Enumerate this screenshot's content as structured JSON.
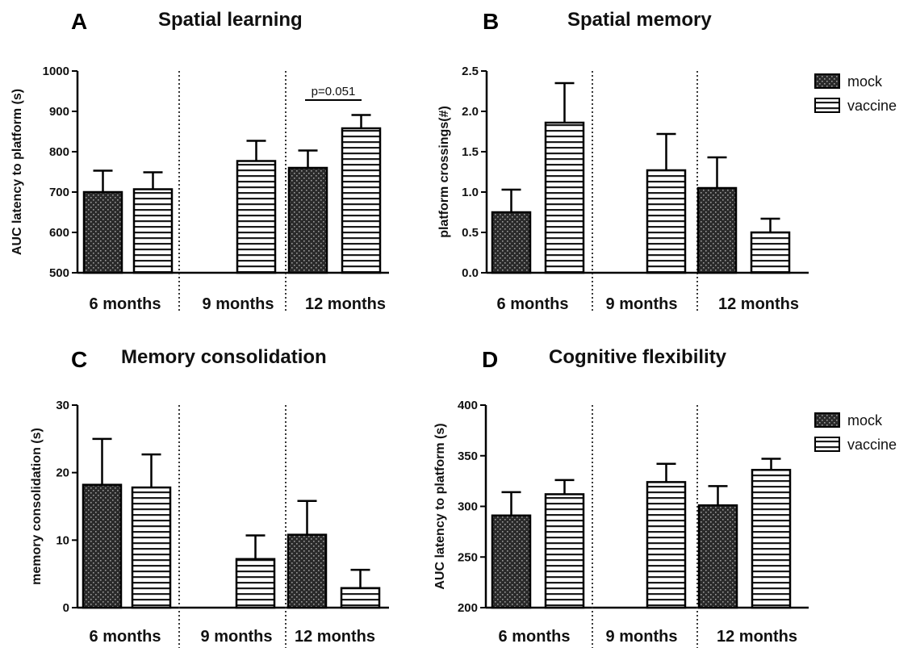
{
  "legend": [
    "mock",
    "vaccine"
  ],
  "chart_data": [
    {
      "letter": "A",
      "title": "Spatial learning",
      "type": "bar",
      "ylabel": "AUC latency to platform (s)",
      "ylim": [
        500,
        1000
      ],
      "yticks": [
        500,
        600,
        700,
        800,
        900,
        1000
      ],
      "groups": [
        "6 months",
        "9 months",
        "12 months"
      ],
      "series": [
        {
          "name": "mock",
          "values": [
            700,
            null,
            760
          ],
          "errors": [
            53,
            null,
            43
          ]
        },
        {
          "name": "vaccine",
          "values": [
            707,
            777,
            858
          ],
          "errors": [
            42,
            50,
            33
          ]
        }
      ],
      "annotations": [
        "p=0.051"
      ]
    },
    {
      "letter": "B",
      "title": "Spatial memory",
      "type": "bar",
      "ylabel": "platform crossings(#)",
      "ylim": [
        0,
        2.5
      ],
      "yticks": [
        "0.0",
        "0.5",
        "1.0",
        "1.5",
        "2.0",
        "2.5"
      ],
      "groups": [
        "6 months",
        "9 months",
        "12 months"
      ],
      "series": [
        {
          "name": "mock",
          "values": [
            0.75,
            null,
            1.05
          ],
          "errors": [
            0.28,
            null,
            0.38
          ]
        },
        {
          "name": "vaccine",
          "values": [
            1.86,
            1.27,
            0.5
          ],
          "errors": [
            0.49,
            0.45,
            0.17
          ]
        }
      ]
    },
    {
      "letter": "C",
      "title": "Memory consolidation",
      "type": "bar",
      "ylabel": "memory consolidation (s)",
      "ylim": [
        0,
        30
      ],
      "yticks": [
        0,
        10,
        20,
        30
      ],
      "groups": [
        "6 months",
        "9 months",
        "12 months"
      ],
      "series": [
        {
          "name": "mock",
          "values": [
            18.2,
            null,
            10.8
          ],
          "errors": [
            6.8,
            null,
            5.0
          ]
        },
        {
          "name": "vaccine",
          "values": [
            17.8,
            7.2,
            2.9
          ],
          "errors": [
            4.9,
            3.5,
            2.7
          ]
        }
      ]
    },
    {
      "letter": "D",
      "title": "Cognitive flexibility",
      "type": "bar",
      "ylabel": "AUC latency to platform (s)",
      "ylim": [
        200,
        400
      ],
      "yticks": [
        200,
        250,
        300,
        350,
        400
      ],
      "groups": [
        "6 months",
        "9 months",
        "12 months"
      ],
      "series": [
        {
          "name": "mock",
          "values": [
            291,
            null,
            301
          ],
          "errors": [
            23,
            null,
            19
          ]
        },
        {
          "name": "vaccine",
          "values": [
            312,
            324,
            336
          ],
          "errors": [
            14,
            18,
            11
          ]
        }
      ]
    }
  ]
}
